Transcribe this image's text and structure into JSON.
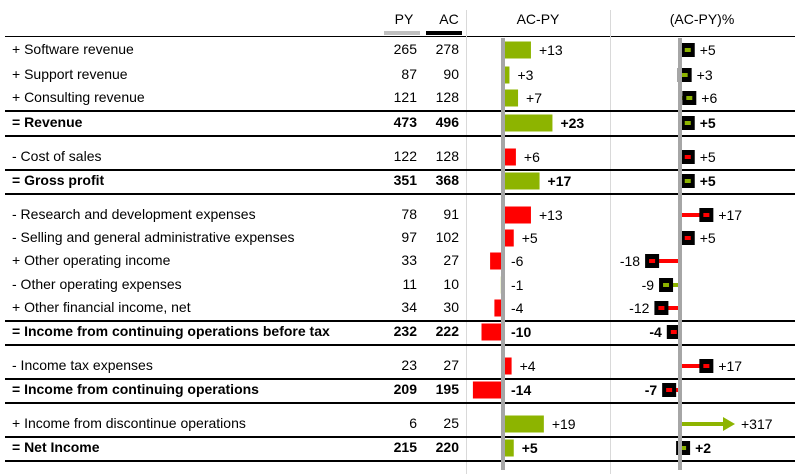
{
  "headers": {
    "py": "PY",
    "ac": "AC",
    "delta": "AC-PY",
    "delta_pct": "(AC-PY)%"
  },
  "colors": {
    "positive": "#8db400",
    "negative": "#ff0000",
    "py": "#c0c0c0",
    "ac": "#000000",
    "axis": "#a6a6a6"
  },
  "rows": [
    {
      "label": "+ Software revenue",
      "py": "265",
      "ac": "278",
      "delta": 13,
      "delta_label": "+13",
      "pct": 5,
      "pct_label": "+5",
      "bold": false,
      "kind": "sub"
    },
    {
      "label": "+ Support revenue",
      "py": "87",
      "ac": "90",
      "delta": 3,
      "delta_label": "+3",
      "pct": 3,
      "pct_label": "+3",
      "bold": false,
      "kind": "sub"
    },
    {
      "label": "+ Consulting revenue",
      "py": "121",
      "ac": "128",
      "delta": 7,
      "delta_label": "+7",
      "pct": 6,
      "pct_label": "+6",
      "bold": false,
      "kind": "sub"
    },
    {
      "label": "= Revenue",
      "py": "473",
      "ac": "496",
      "delta": 23,
      "delta_label": "+23",
      "pct": 5,
      "pct_label": "+5",
      "bold": true,
      "kind": "total"
    },
    {
      "label": "- Cost of sales",
      "py": "122",
      "ac": "128",
      "delta": 6,
      "delta_label": "+6",
      "pct": 5,
      "pct_label": "+5",
      "bold": false,
      "kind": "cost"
    },
    {
      "label": "= Gross profit",
      "py": "351",
      "ac": "368",
      "delta": 17,
      "delta_label": "+17",
      "pct": 5,
      "pct_label": "+5",
      "bold": true,
      "kind": "total"
    },
    {
      "label": "- Research and development expenses",
      "py": "78",
      "ac": "91",
      "delta": 13,
      "delta_label": "+13",
      "pct": 17,
      "pct_label": "+17",
      "bold": false,
      "kind": "cost"
    },
    {
      "label": "- Selling and general administrative expenses",
      "py": "97",
      "ac": "102",
      "delta": 5,
      "delta_label": "+5",
      "pct": 5,
      "pct_label": "+5",
      "bold": false,
      "kind": "cost"
    },
    {
      "label": "+ Other operating income",
      "py": "33",
      "ac": "27",
      "delta": -6,
      "delta_label": "-6",
      "pct": -18,
      "pct_label": "-18",
      "bold": false,
      "kind": "sub"
    },
    {
      "label": "- Other operating expenses",
      "py": "11",
      "ac": "10",
      "delta": -1,
      "delta_label": "-1",
      "pct": -9,
      "pct_label": "-9",
      "bold": false,
      "kind": "cost"
    },
    {
      "label": "+ Other financial income, net",
      "py": "34",
      "ac": "30",
      "delta": -4,
      "delta_label": "-4",
      "pct": -12,
      "pct_label": "-12",
      "bold": false,
      "kind": "sub"
    },
    {
      "label": "= Income from continuing operations before tax",
      "py": "232",
      "ac": "222",
      "delta": -10,
      "delta_label": "-10",
      "pct": -4,
      "pct_label": "-4",
      "bold": true,
      "kind": "total"
    },
    {
      "label": "- Income tax expenses",
      "py": "23",
      "ac": "27",
      "delta": 4,
      "delta_label": "+4",
      "pct": 17,
      "pct_label": "+17",
      "bold": false,
      "kind": "cost"
    },
    {
      "label": "= Income from continuing operations",
      "py": "209",
      "ac": "195",
      "delta": -14,
      "delta_label": "-14",
      "pct": -7,
      "pct_label": "-7",
      "bold": true,
      "kind": "total"
    },
    {
      "label": "+ Income from discontinue operations",
      "py": "6",
      "ac": "25",
      "delta": 19,
      "delta_label": "+19",
      "pct": 317,
      "pct_label": "+317",
      "bold": false,
      "kind": "sub",
      "pct_arrow": true
    },
    {
      "label": "= Net Income",
      "py": "215",
      "ac": "220",
      "delta": 5,
      "delta_label": "+5",
      "pct": 2,
      "pct_label": "+2",
      "bold": true,
      "kind": "total"
    }
  ],
  "chart_data": {
    "type": "bar",
    "title": "",
    "categories": [
      "+ Software revenue",
      "+ Support revenue",
      "+ Consulting revenue",
      "= Revenue",
      "- Cost of sales",
      "= Gross profit",
      "- Research and development expenses",
      "- Selling and general administrative expenses",
      "+ Other operating income",
      "- Other operating expenses",
      "+ Other financial income, net",
      "= Income from continuing operations before tax",
      "- Income tax expenses",
      "= Income from continuing operations",
      "+ Income from discontinue operations",
      "= Net Income"
    ],
    "series": [
      {
        "name": "PY",
        "values": [
          265,
          87,
          121,
          473,
          122,
          351,
          78,
          97,
          33,
          11,
          34,
          232,
          23,
          209,
          6,
          215
        ]
      },
      {
        "name": "AC",
        "values": [
          278,
          90,
          128,
          496,
          128,
          368,
          91,
          102,
          27,
          10,
          30,
          222,
          27,
          195,
          25,
          220
        ]
      },
      {
        "name": "AC-PY",
        "values": [
          13,
          3,
          7,
          23,
          6,
          17,
          13,
          5,
          -6,
          -1,
          -4,
          -10,
          4,
          -14,
          19,
          5
        ]
      },
      {
        "name": "(AC-PY)%",
        "values": [
          5,
          3,
          6,
          5,
          5,
          5,
          17,
          5,
          -18,
          -9,
          -12,
          -4,
          17,
          -7,
          317,
          2
        ]
      }
    ],
    "grid": false,
    "legend": "none"
  }
}
